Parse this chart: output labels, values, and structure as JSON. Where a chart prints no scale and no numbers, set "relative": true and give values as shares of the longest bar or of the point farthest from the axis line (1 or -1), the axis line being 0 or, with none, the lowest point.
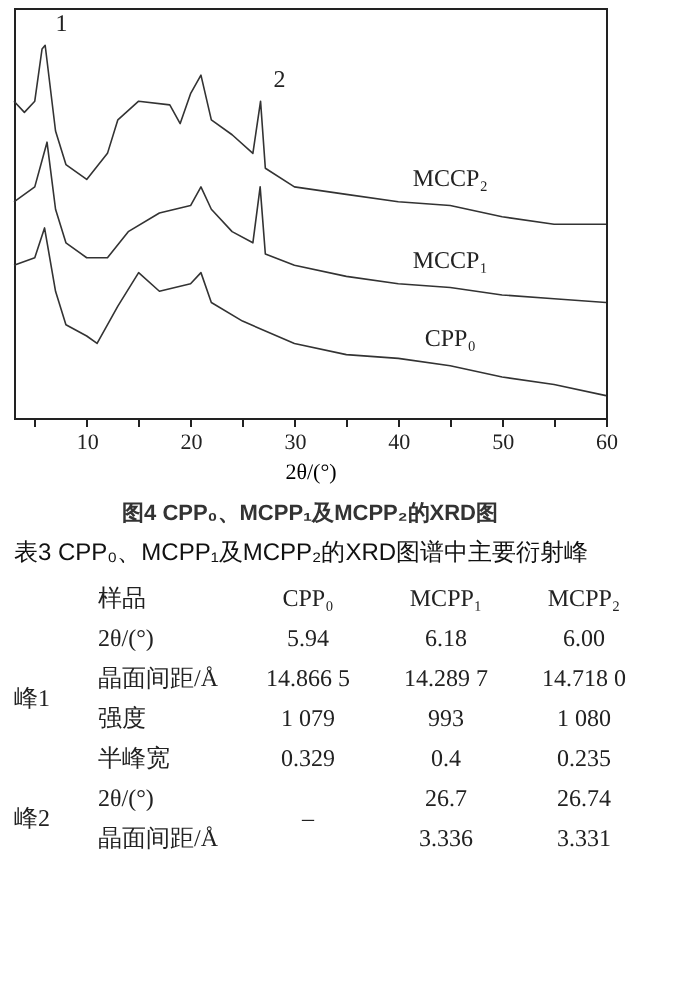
{
  "chart_data": [
    {
      "type": "line",
      "title": "图4 CPP₀、MCPP₁及MCPP₂的XRD图",
      "xlabel": "2θ/(°)",
      "relative": true,
      "xlim": [
        3,
        60
      ],
      "xticks": [
        {
          "value": 5,
          "label": null
        },
        10,
        {
          "value": 15,
          "label": null
        },
        20,
        {
          "value": 25,
          "label": null
        },
        30,
        {
          "value": 35,
          "label": null
        },
        40,
        {
          "value": 45,
          "label": null
        },
        50,
        {
          "value": 55,
          "label": null
        },
        60
      ],
      "marker": "none",
      "line_style": "solid",
      "grid": false,
      "annotations": [
        {
          "text": "1",
          "x": 6.6,
          "y": 1.0
        },
        {
          "text": "2",
          "x": 27.6,
          "y": 0.85
        }
      ],
      "series": [
        {
          "name": "MCCP₂",
          "color": "#333333",
          "x": [
            3,
            4,
            5,
            5.7,
            6,
            7,
            8,
            10,
            12,
            13,
            15,
            18,
            19,
            20,
            21,
            22,
            24,
            26,
            26.74,
            27.2,
            30,
            35,
            40,
            45,
            50,
            55,
            60
          ],
          "values": [
            0.85,
            0.82,
            0.85,
            0.99,
            1.0,
            0.77,
            0.68,
            0.64,
            0.71,
            0.8,
            0.85,
            0.84,
            0.79,
            0.87,
            0.92,
            0.8,
            0.76,
            0.71,
            0.85,
            0.67,
            0.62,
            0.6,
            0.58,
            0.57,
            0.54,
            0.52,
            0.52
          ]
        },
        {
          "name": "MCCP₁",
          "color": "#333333",
          "x": [
            3,
            5,
            6.18,
            7,
            8,
            10,
            12,
            14,
            17,
            20,
            21,
            22,
            24,
            26,
            26.7,
            27.2,
            30,
            35,
            40,
            45,
            50,
            55,
            60
          ],
          "values": [
            0.58,
            0.62,
            0.74,
            0.56,
            0.47,
            0.43,
            0.43,
            0.5,
            0.55,
            0.57,
            0.62,
            0.56,
            0.5,
            0.47,
            0.62,
            0.44,
            0.41,
            0.38,
            0.36,
            0.35,
            0.33,
            0.32,
            0.31
          ]
        },
        {
          "name": "CPP₀",
          "color": "#333333",
          "x": [
            3,
            5,
            5.94,
            7,
            8,
            10,
            11,
            13,
            15,
            17,
            20,
            21,
            22,
            25,
            30,
            35,
            40,
            45,
            50,
            55,
            60
          ],
          "values": [
            0.41,
            0.43,
            0.51,
            0.34,
            0.25,
            0.22,
            0.2,
            0.3,
            0.39,
            0.34,
            0.36,
            0.39,
            0.31,
            0.26,
            0.2,
            0.17,
            0.16,
            0.14,
            0.11,
            0.09,
            0.06
          ]
        }
      ]
    },
    {
      "type": "other",
      "title": "表3 CPP₀、MCPP₁及MCPP₂的XRD图谱中主要衍射峰",
      "annotations": [
        "样品"
      ],
      "categories": [
        "CPP₀",
        "MCPP₁",
        "MCPP₂"
      ],
      "y_categories": [
        "2θ/(°)",
        "晶面间距/Å",
        "强度",
        "半峰宽",
        "2θ/(°)",
        "晶面间距/Å"
      ],
      "y2_categories": [
        "峰1",
        null,
        null,
        null,
        "峰2",
        null
      ],
      "cell_labels": [
        [
          "5.94",
          "6.18",
          "6.00"
        ],
        [
          "14.866 5",
          "14.289 7",
          "14.718 0"
        ],
        [
          "1 079",
          "993",
          "1 080"
        ],
        [
          "0.329",
          "0.4",
          "0.235"
        ],
        [
          "–",
          "26.7",
          "26.74"
        ],
        [
          null,
          "3.336",
          "3.331"
        ]
      ]
    }
  ]
}
